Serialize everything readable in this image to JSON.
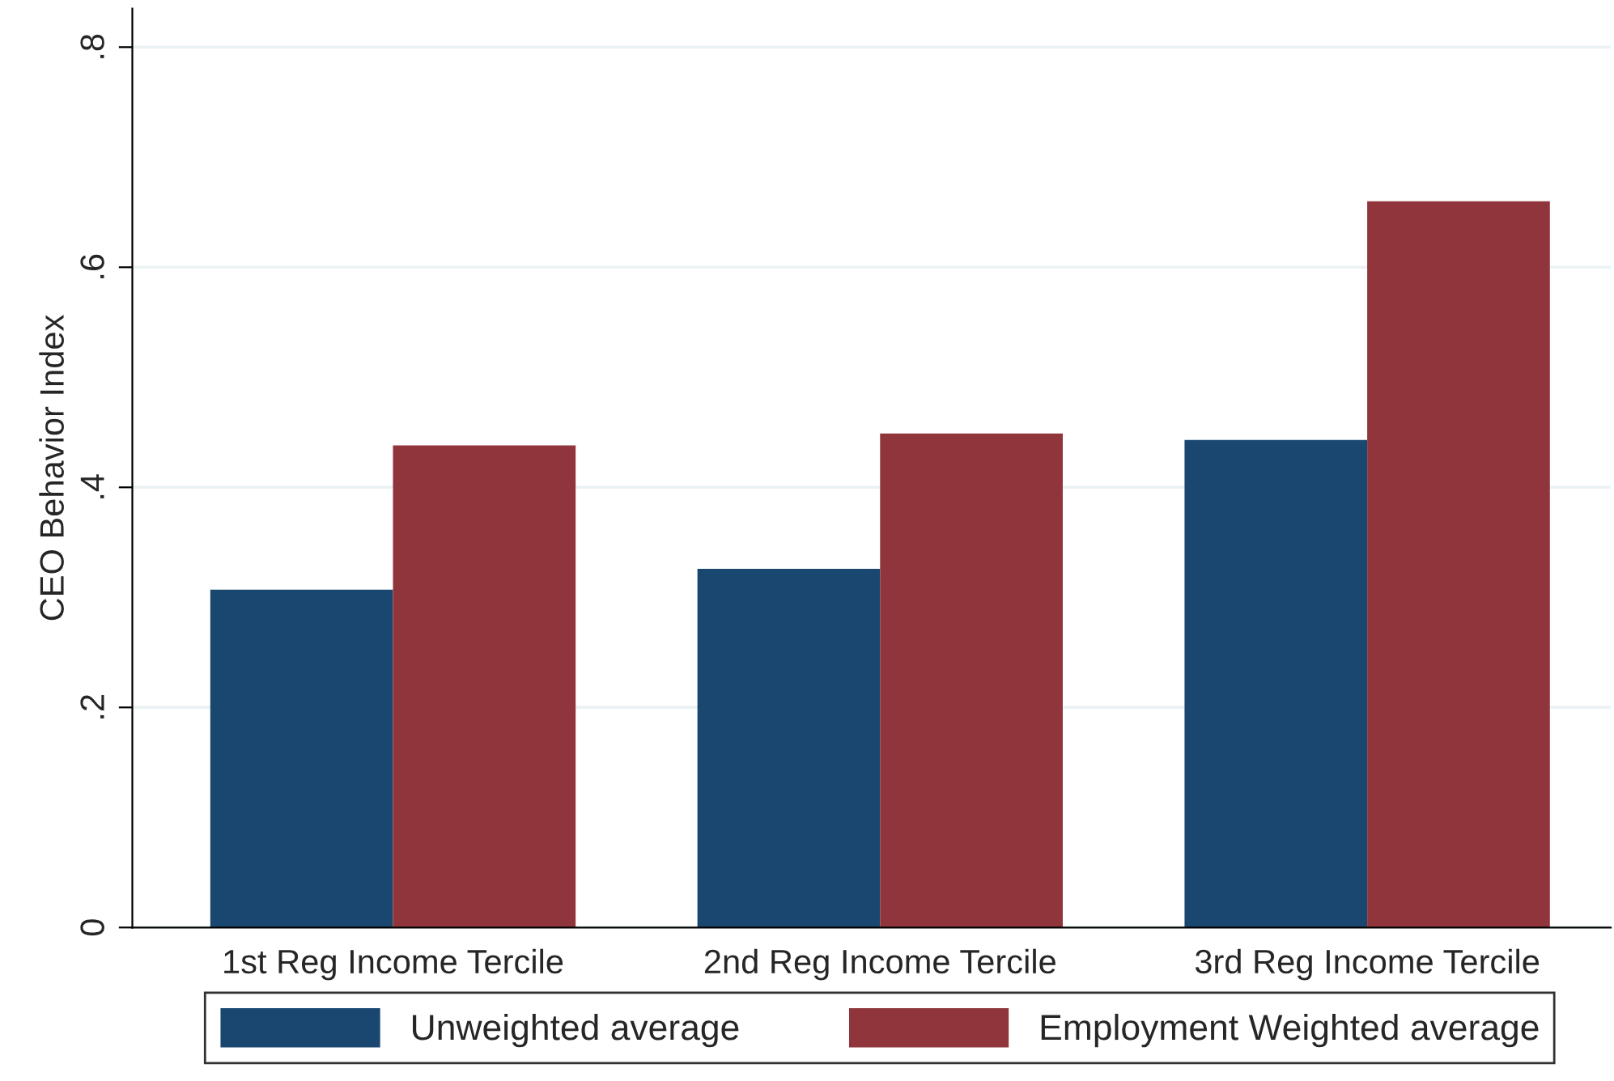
{
  "chart_data": {
    "type": "bar",
    "ylabel": "CEO Behavior Index",
    "categories": [
      "1st Reg Income Tercile",
      "2nd Reg Income Tercile",
      "3rd Reg Income Tercile"
    ],
    "series": [
      {
        "name": "Unweighted average",
        "color": "#1a476f",
        "values": [
          0.307,
          0.326,
          0.443
        ]
      },
      {
        "name": "Employment Weighted average",
        "color": "#90353b",
        "values": [
          0.438,
          0.449,
          0.66
        ]
      }
    ],
    "ylim": [
      0,
      0.835
    ],
    "yticks": [
      {
        "value": 0,
        "label": "0"
      },
      {
        "value": 0.2,
        "label": ".2"
      },
      {
        "value": 0.4,
        "label": ".4"
      },
      {
        "value": 0.6,
        "label": ".6"
      },
      {
        "value": 0.8,
        "label": ".8"
      }
    ],
    "grid": "y",
    "legend": "bottom"
  }
}
